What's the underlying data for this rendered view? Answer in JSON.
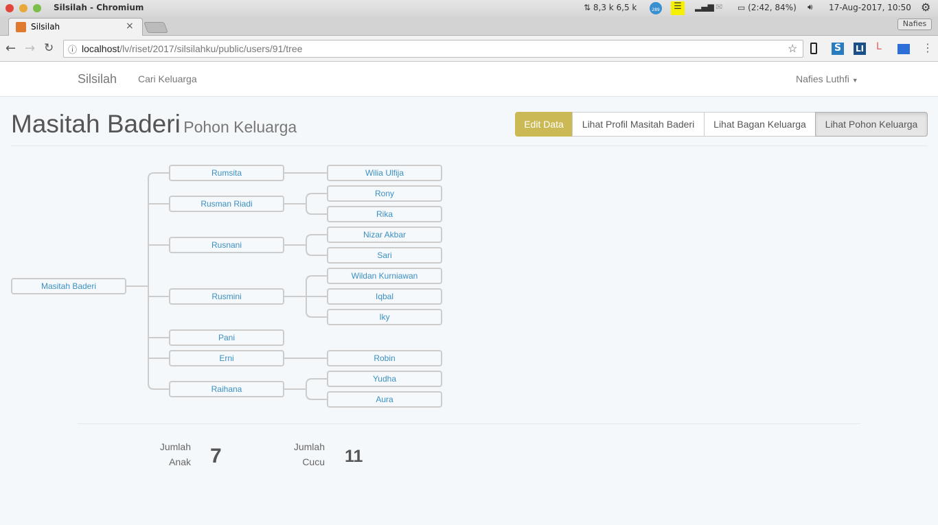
{
  "os": {
    "window_title": "Silsilah - Chromium",
    "net": "8,3 k 6,5 k",
    "badge": "289",
    "battery": "(2:42, 84%)",
    "datetime": "17-Aug-2017, 10:50",
    "user_button": "Nafies"
  },
  "browser": {
    "tab_title": "Silsilah",
    "url_host": "localhost",
    "url_path": "/lv/riset/2017/silsilahku/public/users/91/tree"
  },
  "nav": {
    "brand": "Silsilah",
    "link": "Cari Keluarga",
    "user": "Nafies Luthfi"
  },
  "page": {
    "title": "Masitah Baderi",
    "subtitle": "Pohon Keluarga"
  },
  "actions": [
    {
      "label": "Edit Data",
      "color": "#cbb956"
    },
    {
      "label": "Lihat Profil Masitah Baderi"
    },
    {
      "label": "Lihat Bagan Keluarga"
    },
    {
      "label": "Lihat Pohon Keluarga",
      "active": true
    }
  ],
  "tree": {
    "name": "Masitah Baderi",
    "children": [
      {
        "name": "Rumsita",
        "children": [
          "Wilia Ulfija"
        ]
      },
      {
        "name": "Rusman Riadi",
        "children": [
          "Rony",
          "Rika"
        ]
      },
      {
        "name": "Rusnani",
        "children": [
          "Nizar Akbar",
          "Sari"
        ]
      },
      {
        "name": "Rusmini",
        "children": [
          "Wildan Kurniawan",
          "Iqbal",
          "Iky"
        ]
      },
      {
        "name": "Pani",
        "children": []
      },
      {
        "name": "Erni",
        "children": [
          "Robin"
        ]
      },
      {
        "name": "Raihana",
        "children": [
          "Yudha",
          "Aura"
        ]
      }
    ]
  },
  "stats": {
    "children_label_1": "Jumlah",
    "children_label_2": "Anak",
    "children_count": "7",
    "grandchildren_label_1": "Jumlah",
    "grandchildren_label_2": "Cucu",
    "grandchildren_count": "11"
  }
}
